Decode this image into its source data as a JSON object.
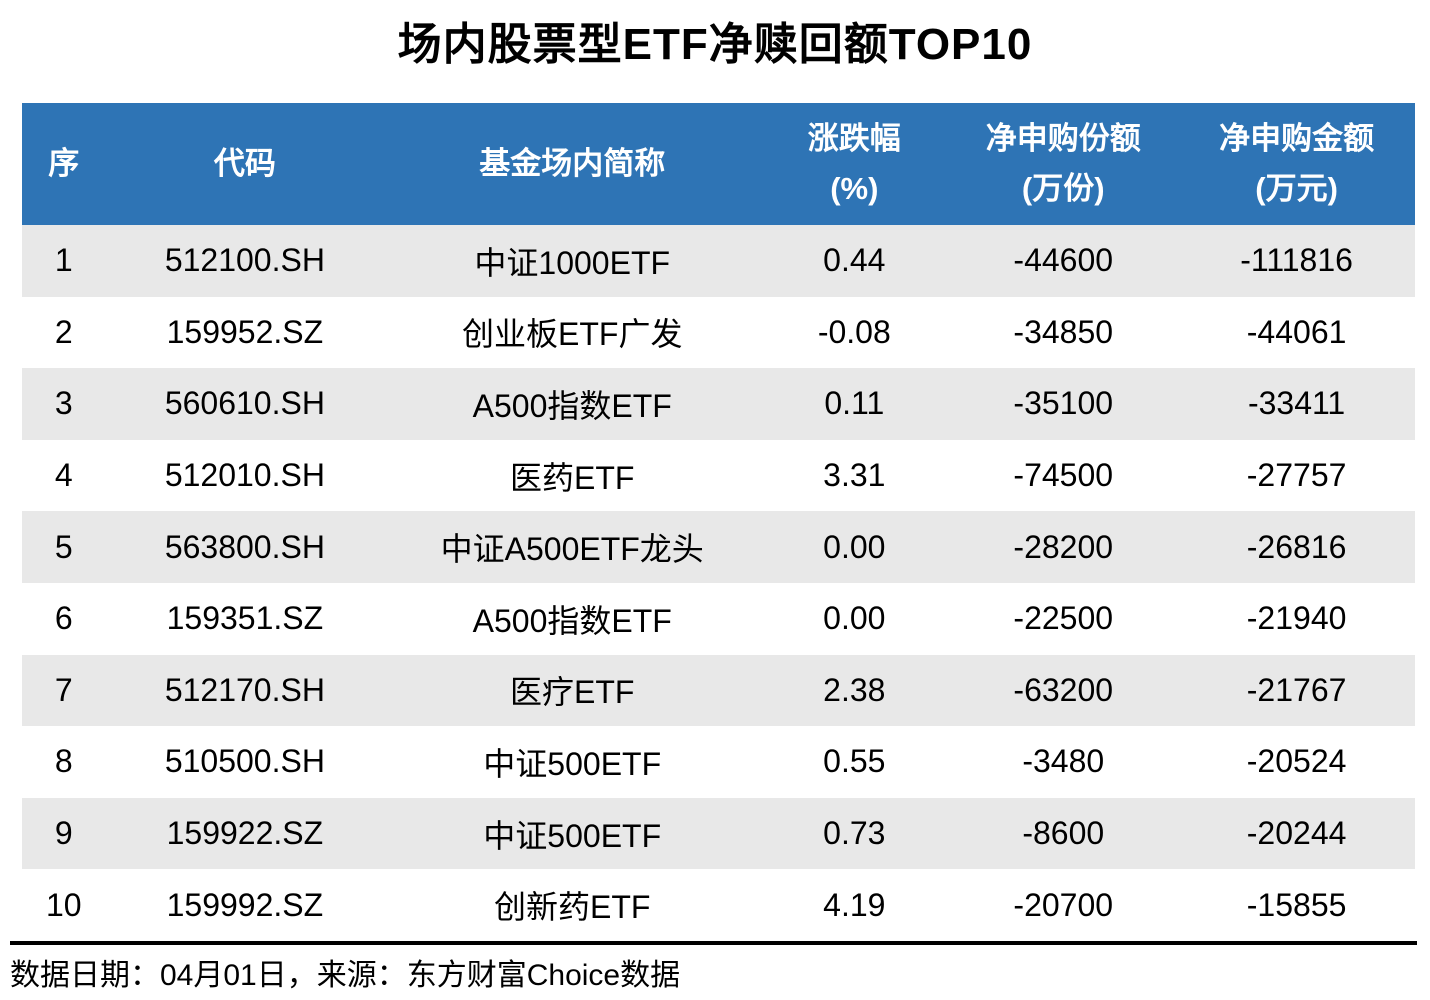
{
  "title": "场内股票型ETF净赎回额TOP10",
  "colors": {
    "header_bg": "#2e74b5",
    "header_text": "#ffffff",
    "row_stripe": "#e8e8e8",
    "row_plain": "#ffffff",
    "rule": "#000000"
  },
  "table": {
    "headers": [
      {
        "line1": "序",
        "line2": ""
      },
      {
        "line1": "代码",
        "line2": ""
      },
      {
        "line1": "基金场内简称",
        "line2": ""
      },
      {
        "line1": "涨跌幅",
        "line2": "(%)"
      },
      {
        "line1": "净申购份额",
        "line2": "(万份)"
      },
      {
        "line1": "净申购金额",
        "line2": "(万元)"
      }
    ],
    "rows": [
      [
        "1",
        "512100.SH",
        "中证1000ETF",
        "0.44",
        "-44600",
        "-111816"
      ],
      [
        "2",
        "159952.SZ",
        "创业板ETF广发",
        "-0.08",
        "-34850",
        "-44061"
      ],
      [
        "3",
        "560610.SH",
        "A500指数ETF",
        "0.11",
        "-35100",
        "-33411"
      ],
      [
        "4",
        "512010.SH",
        "医药ETF",
        "3.31",
        "-74500",
        "-27757"
      ],
      [
        "5",
        "563800.SH",
        "中证A500ETF龙头",
        "0.00",
        "-28200",
        "-26816"
      ],
      [
        "6",
        "159351.SZ",
        "A500指数ETF",
        "0.00",
        "-22500",
        "-21940"
      ],
      [
        "7",
        "512170.SH",
        "医疗ETF",
        "2.38",
        "-63200",
        "-21767"
      ],
      [
        "8",
        "510500.SH",
        "中证500ETF",
        "0.55",
        "-3480",
        "-20524"
      ],
      [
        "9",
        "159922.SZ",
        "中证500ETF",
        "0.73",
        "-8600",
        "-20244"
      ],
      [
        "10",
        "159992.SZ",
        "创新药ETF",
        "4.19",
        "-20700",
        "-15855"
      ]
    ]
  },
  "footer": {
    "source_text": "数据日期：04月01日，来源：东方财富Choice数据"
  },
  "chart_data": {
    "type": "table",
    "title": "场内股票型ETF净赎回额TOP10",
    "columns": [
      "序",
      "代码",
      "基金场内简称",
      "涨跌幅(%)",
      "净申购份额(万份)",
      "净申购金额(万元)"
    ],
    "rows": [
      [
        1,
        "512100.SH",
        "中证1000ETF",
        0.44,
        -44600,
        -111816
      ],
      [
        2,
        "159952.SZ",
        "创业板ETF广发",
        -0.08,
        -34850,
        -44061
      ],
      [
        3,
        "560610.SH",
        "A500指数ETF",
        0.11,
        -35100,
        -33411
      ],
      [
        4,
        "512010.SH",
        "医药ETF",
        3.31,
        -74500,
        -27757
      ],
      [
        5,
        "563800.SH",
        "中证A500ETF龙头",
        0.0,
        -28200,
        -26816
      ],
      [
        6,
        "159351.SZ",
        "A500指数ETF",
        0.0,
        -22500,
        -21940
      ],
      [
        7,
        "512170.SH",
        "医疗ETF",
        2.38,
        -63200,
        -21767
      ],
      [
        8,
        "510500.SH",
        "中证500ETF",
        0.55,
        -3480,
        -20524
      ],
      [
        9,
        "159922.SZ",
        "中证500ETF",
        0.73,
        -8600,
        -20244
      ],
      [
        10,
        "159992.SZ",
        "创新药ETF",
        4.19,
        -20700,
        -15855
      ]
    ],
    "source_note": "数据日期：04月01日，来源：东方财富Choice数据"
  }
}
